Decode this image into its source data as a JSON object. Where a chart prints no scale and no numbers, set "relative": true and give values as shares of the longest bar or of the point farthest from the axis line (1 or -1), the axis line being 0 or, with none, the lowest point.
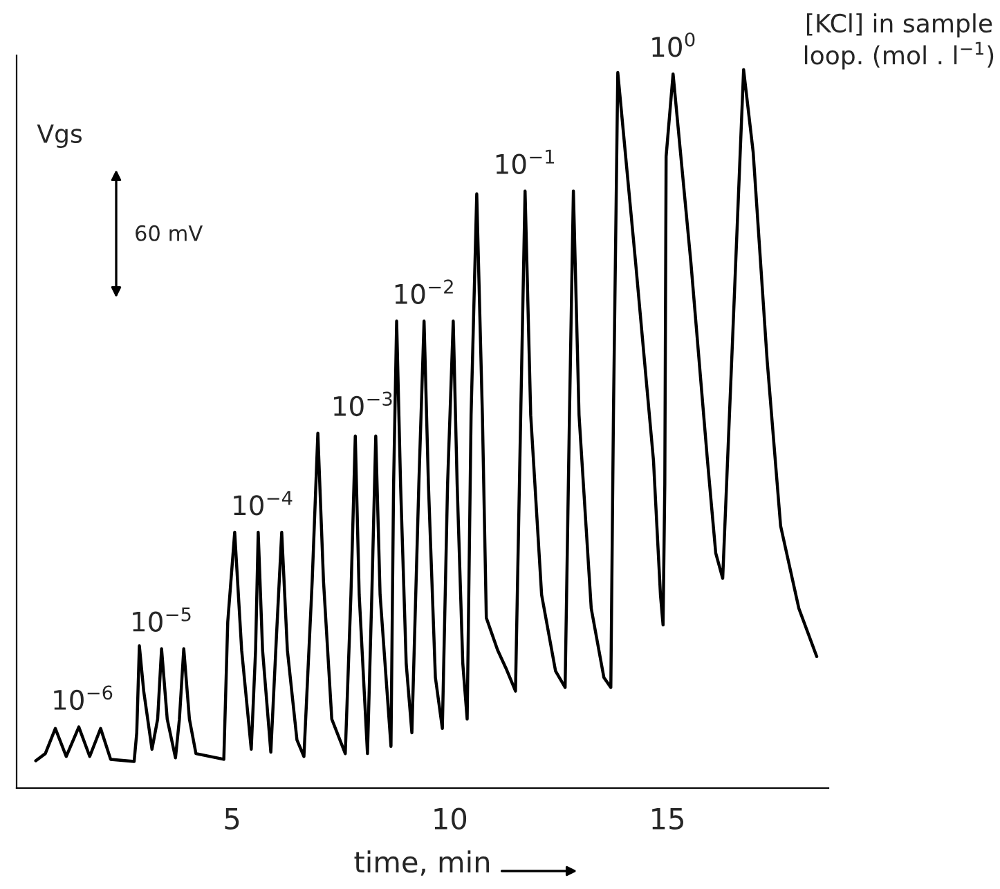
{
  "chart_data": {
    "type": "line",
    "relative": true,
    "xlabel": "time, min",
    "ylabel": "Vgs",
    "xlim": [
      0.05,
      18.7
    ],
    "xticks": [
      5,
      10,
      15
    ],
    "series": [
      {
        "color": "#000000",
        "x": [
          0.49,
          0.71,
          0.94,
          1.19,
          1.48,
          1.73,
          1.98,
          2.21,
          2.75,
          2.81,
          2.87,
          2.97,
          3.16,
          3.29,
          3.38,
          3.51,
          3.7,
          3.79,
          3.89,
          4.02,
          4.17,
          4.81,
          4.9,
          5.06,
          5.22,
          5.44,
          5.54,
          5.6,
          5.7,
          5.89,
          6.02,
          6.14,
          6.27,
          6.49,
          6.65,
          6.84,
          6.97,
          7.1,
          7.29,
          7.6,
          7.73,
          7.83,
          7.92,
          8.11,
          8.21,
          8.3,
          8.4,
          8.65,
          8.71,
          8.78,
          8.87,
          9.0,
          9.13,
          9.29,
          9.41,
          9.51,
          9.67,
          9.83,
          9.95,
          10.08,
          10.17,
          10.3,
          10.4,
          10.49,
          10.62,
          10.75,
          10.84,
          11.1,
          11.29,
          11.51,
          11.63,
          11.73,
          11.86,
          12.11,
          12.43,
          12.65,
          12.75,
          12.84,
          12.97,
          13.25,
          13.54,
          13.7,
          13.76,
          13.86,
          14.27,
          14.68,
          14.84,
          14.9,
          14.94,
          14.97,
          15.13,
          15.54,
          15.92,
          16.11,
          16.27,
          16.49,
          16.75,
          16.97,
          17.29,
          17.6,
          18.02,
          18.43
        ],
        "values": [
          0.038,
          0.048,
          0.083,
          0.044,
          0.085,
          0.044,
          0.083,
          0.04,
          0.037,
          0.077,
          0.198,
          0.135,
          0.054,
          0.096,
          0.194,
          0.096,
          0.042,
          0.096,
          0.194,
          0.096,
          0.048,
          0.04,
          0.231,
          0.356,
          0.192,
          0.054,
          0.192,
          0.356,
          0.192,
          0.05,
          0.212,
          0.356,
          0.192,
          0.067,
          0.044,
          0.288,
          0.494,
          0.288,
          0.096,
          0.048,
          0.269,
          0.49,
          0.269,
          0.048,
          0.269,
          0.49,
          0.269,
          0.058,
          0.423,
          0.65,
          0.423,
          0.173,
          0.077,
          0.423,
          0.65,
          0.423,
          0.154,
          0.083,
          0.423,
          0.65,
          0.423,
          0.173,
          0.096,
          0.519,
          0.827,
          0.519,
          0.237,
          0.192,
          0.167,
          0.135,
          0.519,
          0.831,
          0.519,
          0.269,
          0.163,
          0.14,
          0.519,
          0.831,
          0.519,
          0.25,
          0.154,
          0.14,
          0.519,
          0.996,
          0.731,
          0.456,
          0.269,
          0.227,
          0.423,
          0.879,
          0.994,
          0.731,
          0.456,
          0.327,
          0.292,
          0.615,
          1.0,
          0.885,
          0.596,
          0.365,
          0.25,
          0.183
        ]
      }
    ],
    "annotations": [
      {
        "text": "10$^{−6}$",
        "x": 1.57,
        "y": 0.085
      },
      {
        "text": "10$^{−5}$",
        "x": 3.38,
        "y": 0.194
      },
      {
        "text": "10$^{−4}$",
        "x": 5.7,
        "y": 0.356
      },
      {
        "text": "10$^{−3}$",
        "x": 8.0,
        "y": 0.494
      },
      {
        "text": "10$^{−2}$",
        "x": 9.41,
        "y": 0.65
      },
      {
        "text": "10$^{−1}$",
        "x": 11.73,
        "y": 0.831
      },
      {
        "text": "10$^{0}$",
        "x": 15.13,
        "y": 0.994
      },
      "[KCl] in sample\nloop. (mol . l$^{−1}$)",
      "60 mV"
    ]
  }
}
